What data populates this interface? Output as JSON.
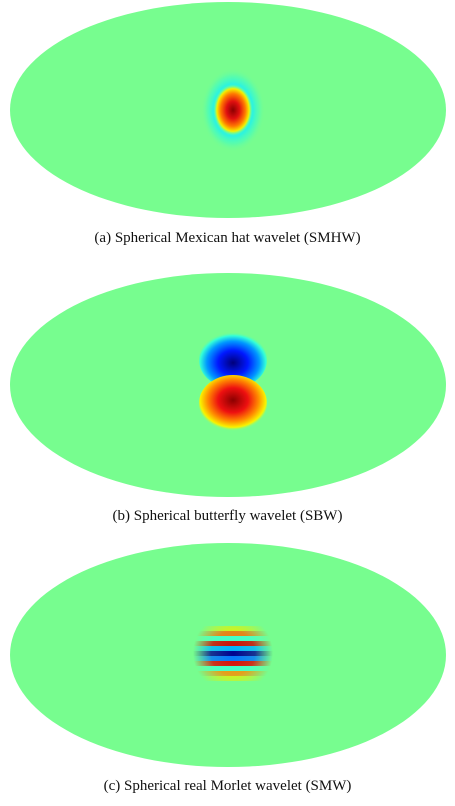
{
  "figure": {
    "background_color": "#77fd8f",
    "panels": [
      {
        "id": "a",
        "wavelet": "mexican-hat",
        "caption": "(a) Spherical Mexican hat wavelet (SMHW)"
      },
      {
        "id": "b",
        "wavelet": "butterfly",
        "caption": "(b) Spherical butterfly wavelet (SBW)"
      },
      {
        "id": "c",
        "wavelet": "real-morlet",
        "caption": "(c) Spherical real Morlet wavelet (SMW)"
      }
    ]
  }
}
